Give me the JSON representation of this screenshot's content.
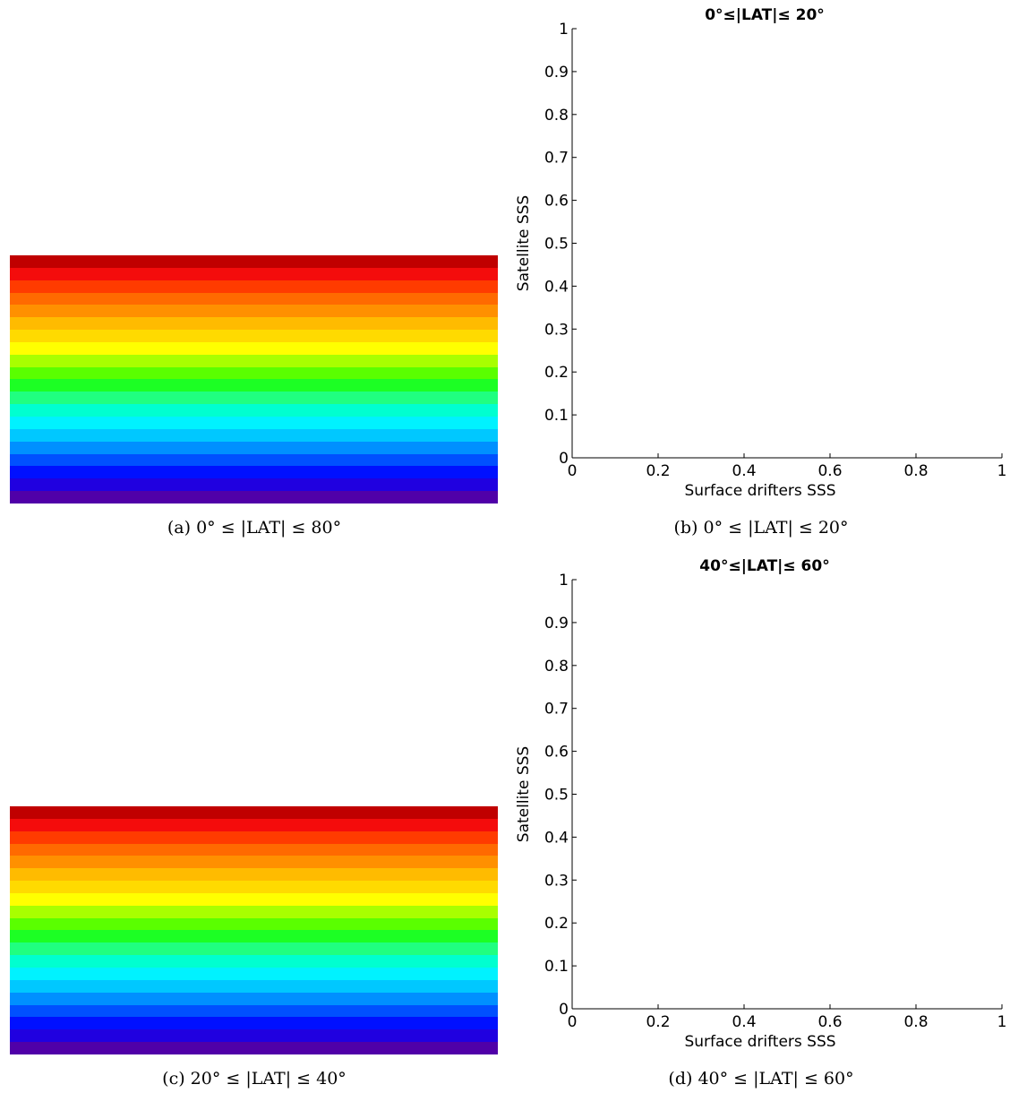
{
  "stripe_colors": [
    "#c00000",
    "#f40c0c",
    "#ff3b00",
    "#ff6a00",
    "#ff9000",
    "#ffbb00",
    "#ffda00",
    "#ffff00",
    "#a8ff00",
    "#5aff00",
    "#1cff24",
    "#20ff80",
    "#00ffd0",
    "#00f2ff",
    "#00c8ff",
    "#0090ff",
    "#0050ff",
    "#0010ff",
    "#2000e0",
    "#5000a8"
  ],
  "captions": {
    "a": "(a) 0° ≤ |LAT| ≤ 80°",
    "b": "(b) 0° ≤ |LAT| ≤ 20°",
    "c": "(c) 20° ≤ |LAT| ≤ 40°",
    "d": "(d) 40° ≤ |LAT| ≤ 60°"
  },
  "chart_data": [
    {
      "type": "scatter",
      "title": "0°≤|LAT|≤ 20°",
      "xlabel": "Surface drifters SSS",
      "ylabel": "Satellite SSS",
      "xlim": [
        0,
        1
      ],
      "ylim": [
        0,
        1
      ],
      "xticks": [
        "0",
        "0.2",
        "0.4",
        "0.6",
        "0.8",
        "1"
      ],
      "yticks": [
        "0",
        "0.1",
        "0.2",
        "0.3",
        "0.4",
        "0.5",
        "0.6",
        "0.7",
        "0.8",
        "0.9",
        "1"
      ],
      "grid": false,
      "series": []
    },
    {
      "type": "scatter",
      "title": "40°≤|LAT|≤ 60°",
      "xlabel": "Surface drifters SSS",
      "ylabel": "Satellite SSS",
      "xlim": [
        0,
        1
      ],
      "ylim": [
        0,
        1
      ],
      "xticks": [
        "0",
        "0.2",
        "0.4",
        "0.6",
        "0.8",
        "1"
      ],
      "yticks": [
        "0",
        "0.1",
        "0.2",
        "0.3",
        "0.4",
        "0.5",
        "0.6",
        "0.7",
        "0.8",
        "0.9",
        "1"
      ],
      "grid": false,
      "series": []
    }
  ]
}
